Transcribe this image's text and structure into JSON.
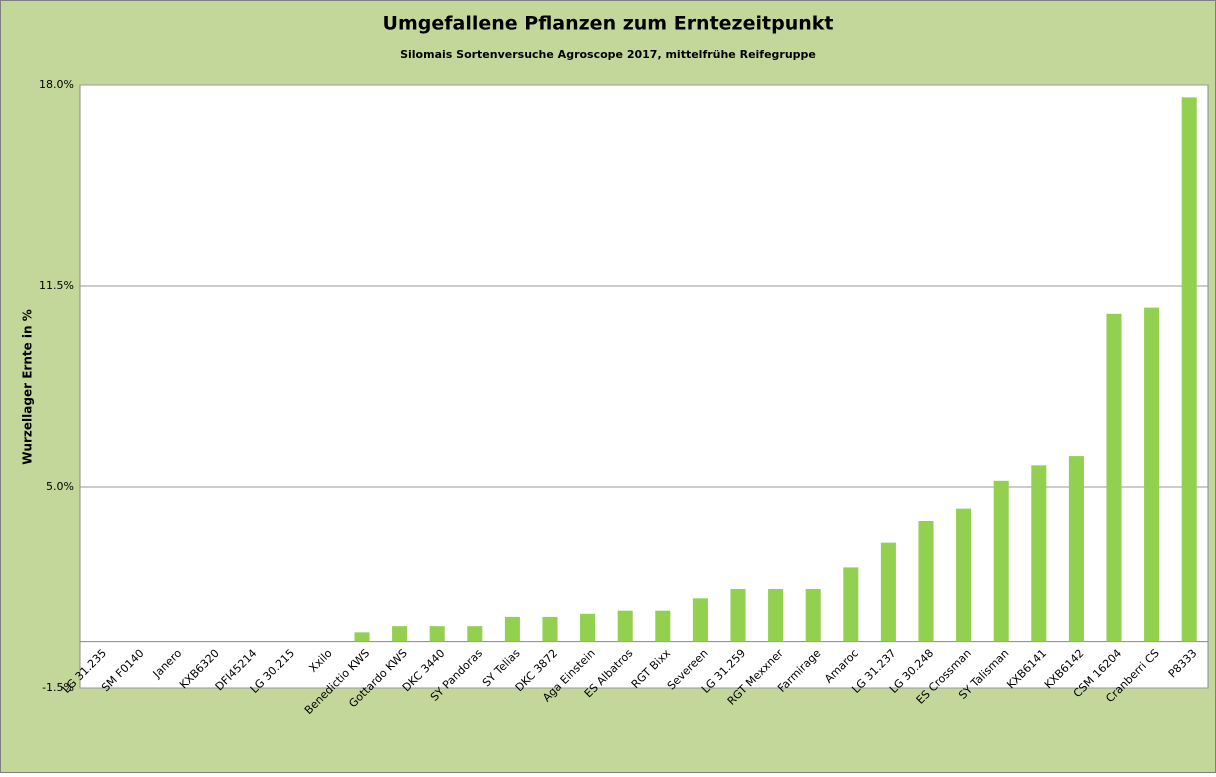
{
  "chart_data": {
    "type": "bar",
    "title": "Umgefallene Pflanzen zum Erntezeitpunkt",
    "subtitle": "Silomais Sortenversuche Agroscope 2017, mittelfrühe Reifegruppe",
    "y_label": "Wurzellager Ernte in %",
    "categories": [
      "LG 31.235",
      "SM F0140",
      "Janero",
      "KXB6320",
      "DFI45214",
      "LG 30.215",
      "Xxilo",
      "Benedictio KWS",
      "Gottardo KWS",
      "DKC 3440",
      "SY Pandoras",
      "SY Telias",
      "DKC 3872",
      "Aga Einstein",
      "ES Albatros",
      "RGT Bixx",
      "Severeen",
      "LG 31.259",
      "RGT Mexxner",
      "Farmirage",
      "Amaroc",
      "LG 31.237",
      "LG 30.248",
      "ES Crossman",
      "SY Talisman",
      "KXB6141",
      "KXB6142",
      "CSM 16204",
      "Cranberri CS",
      "P8333"
    ],
    "values": [
      0,
      0,
      0,
      0,
      0,
      0,
      0,
      0.3,
      0.5,
      0.5,
      0.5,
      0.8,
      0.8,
      0.9,
      1.0,
      1.0,
      1.4,
      1.7,
      1.7,
      1.7,
      2.4,
      3.2,
      3.9,
      4.3,
      5.2,
      5.7,
      6.0,
      10.6,
      10.8,
      17.6
    ],
    "color": "#92d050",
    "ylim": [
      -1.5,
      18
    ],
    "yticks": [
      {
        "value": -1.5,
        "label": "-1.5%"
      },
      {
        "value": 5,
        "label": "5.0%"
      },
      {
        "value": 11.5,
        "label": "11.5%"
      },
      {
        "value": 18,
        "label": "18.0%"
      }
    ],
    "grid": true
  }
}
